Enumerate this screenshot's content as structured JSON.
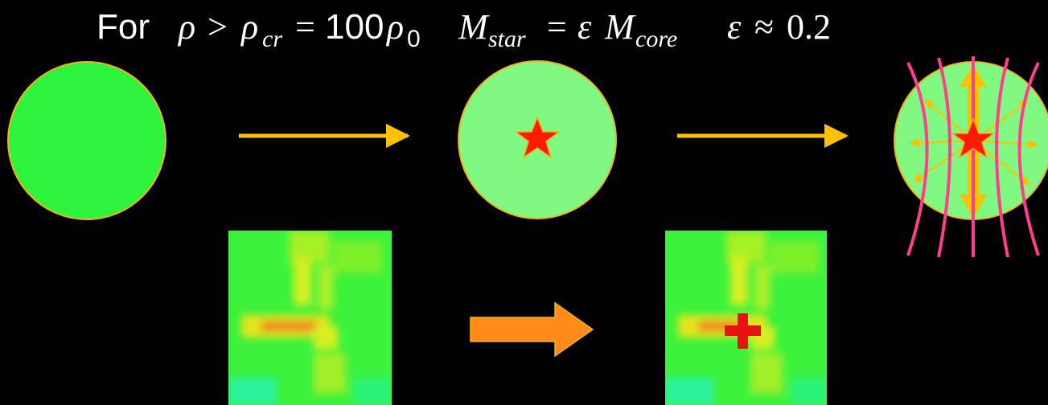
{
  "formula": {
    "for_word": "For",
    "rho": "ρ",
    "gt": ">",
    "rho_cr": "ρ",
    "sub_cr": "cr",
    "eq1": "=",
    "hundred": "100",
    "rho_0": "ρ",
    "sub_0": "0",
    "m_star": "M",
    "sub_star": "star",
    "eq2": "=",
    "eps1": "ε",
    "m_core": "M",
    "sub_core": "core",
    "eps2": "ε",
    "approx": "≈",
    "eps_value": "0.2"
  },
  "colors": {
    "background": "#000000",
    "core_dense": "#2ef53c",
    "core_light": "#80f982",
    "outline": "#f2b21a",
    "arrow": "#ffc000",
    "star": "#ff1a00",
    "field_lines": "#ff3e8f",
    "block_arrow": "#ff8c1a",
    "cross": "#e81010"
  },
  "icons": {
    "star": "star-icon",
    "cross": "plus-icon",
    "arrow": "arrow-right-icon"
  }
}
